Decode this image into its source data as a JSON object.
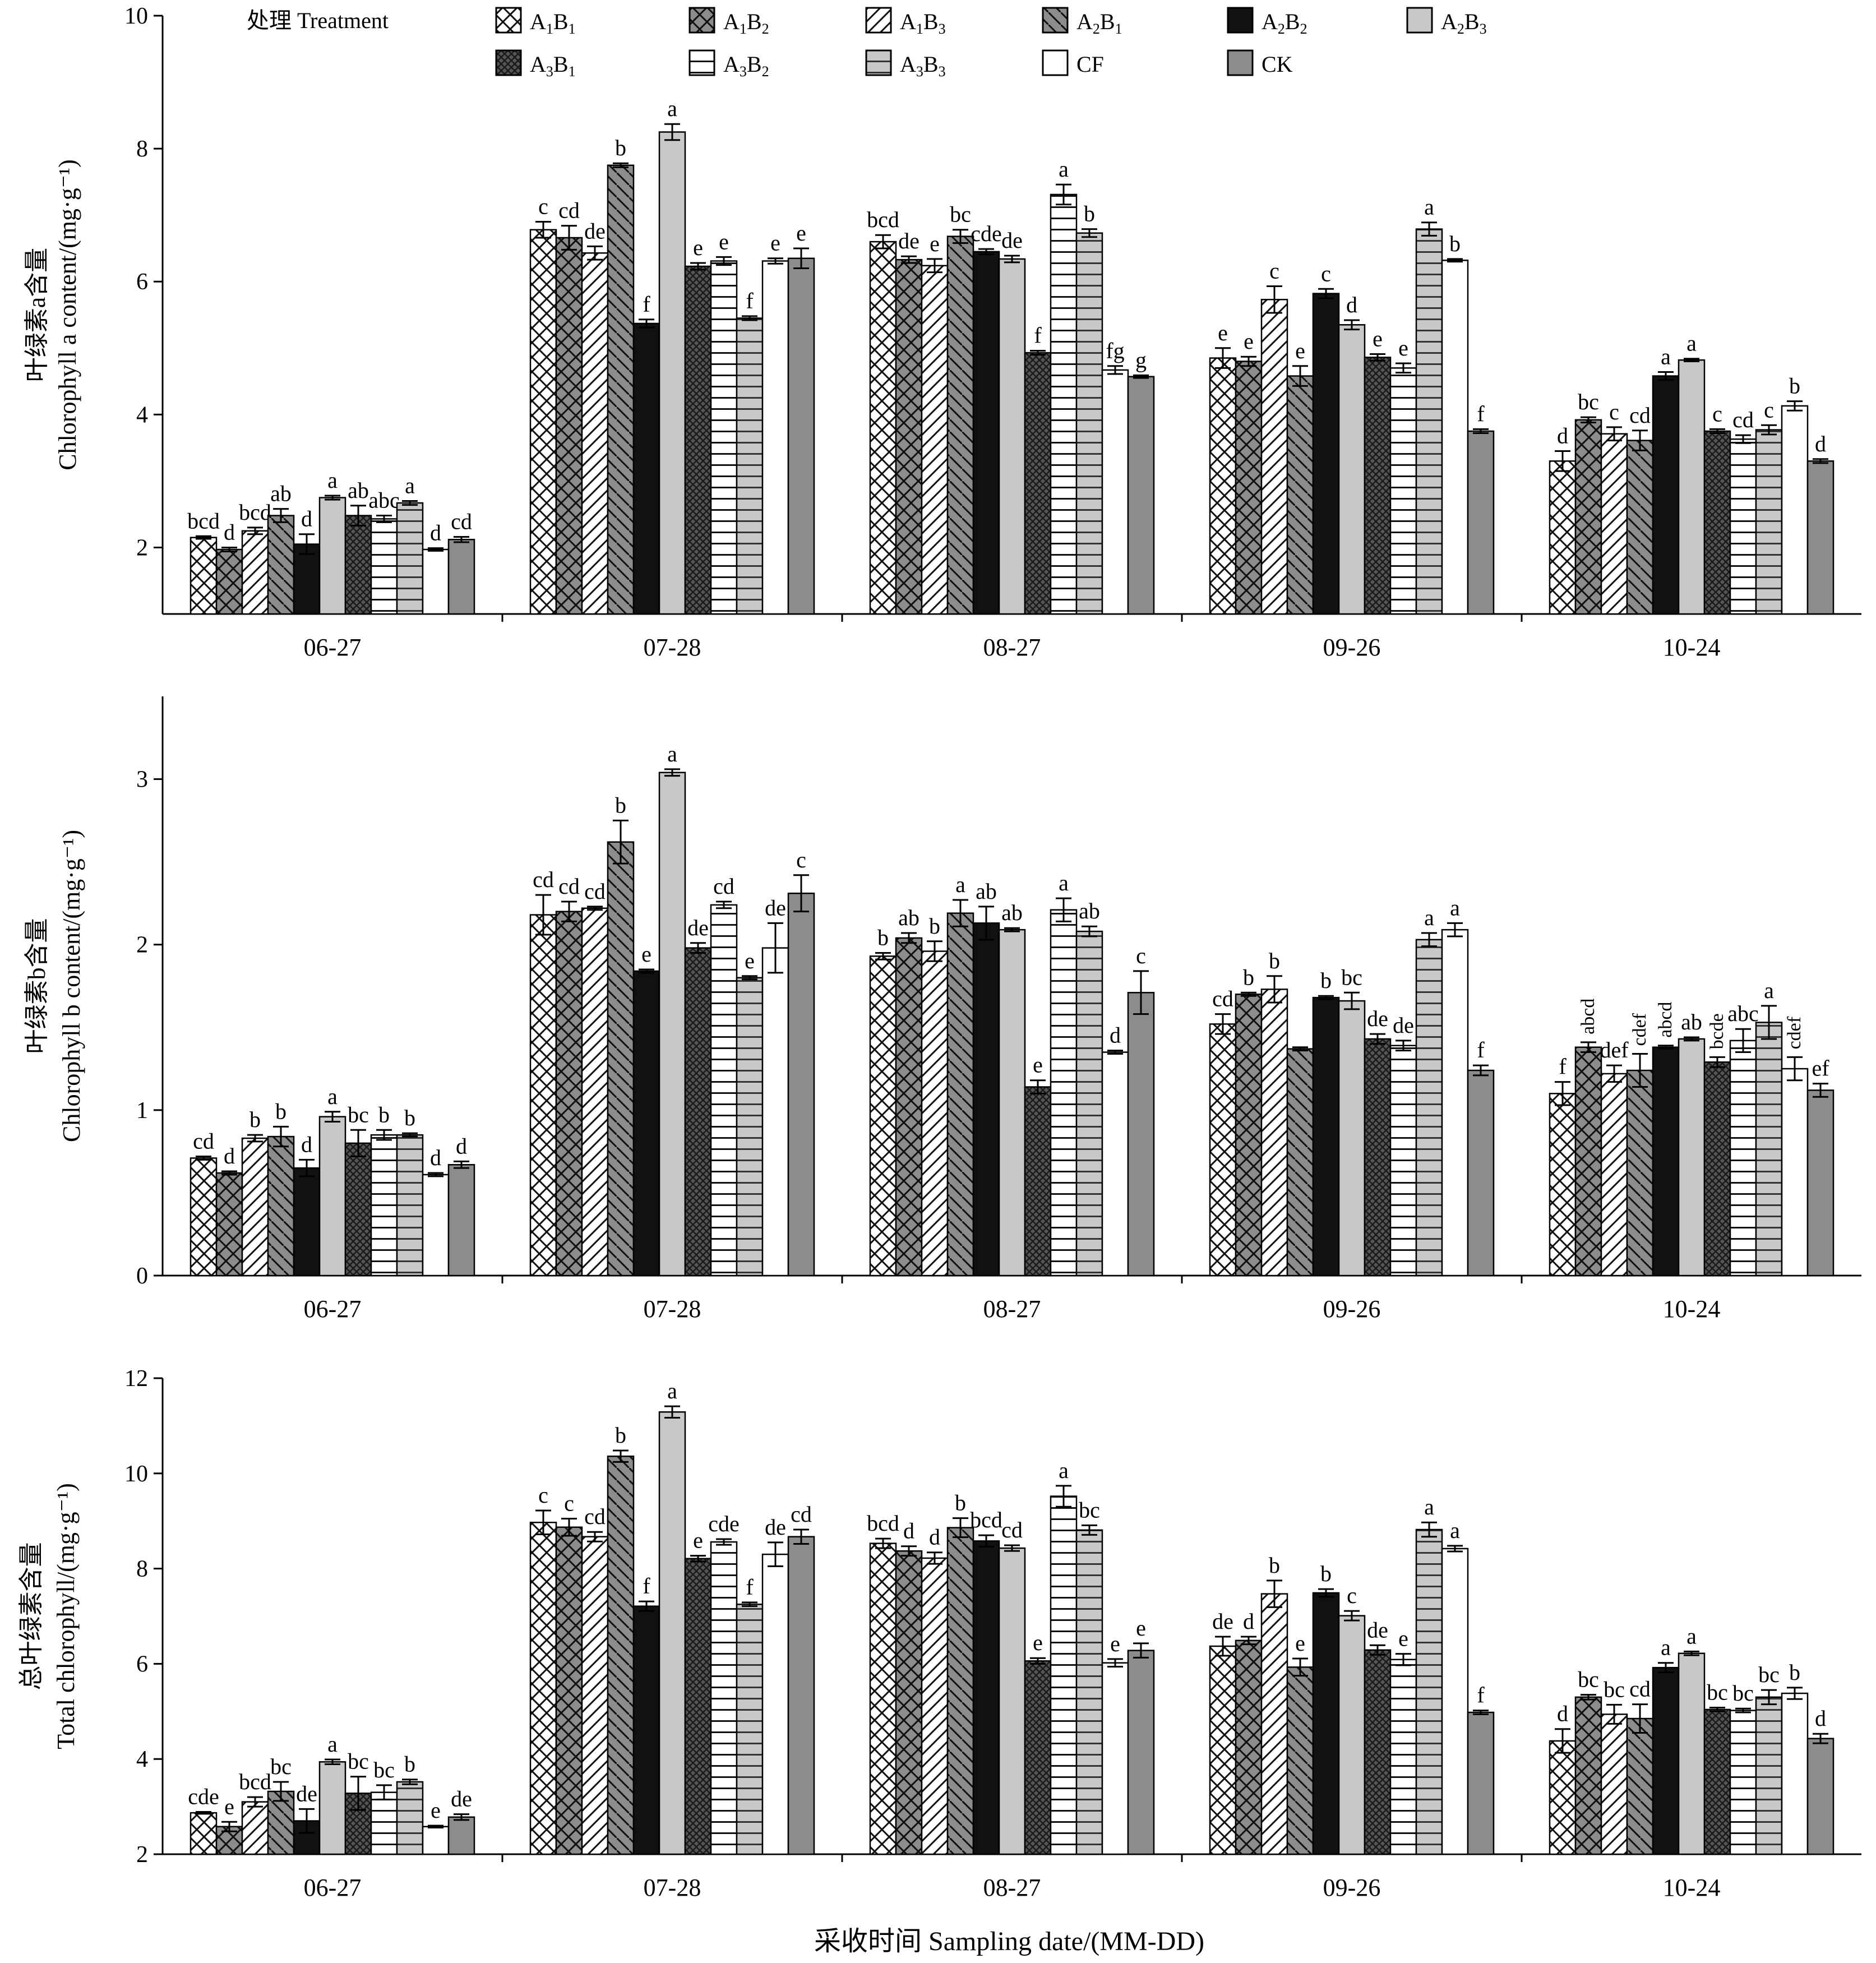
{
  "legend": {
    "title": "处理 Treatment",
    "entries": [
      {
        "key": "A1B1",
        "main": "A",
        "s1": "1",
        "mid": "B",
        "s2": "1",
        "pattern": "cross"
      },
      {
        "key": "A1B2",
        "main": "A",
        "s1": "1",
        "mid": "B",
        "s2": "2",
        "pattern": "gray-cross"
      },
      {
        "key": "A1B3",
        "main": "A",
        "s1": "1",
        "mid": "B",
        "s2": "3",
        "pattern": "diag-white"
      },
      {
        "key": "A2B1",
        "main": "A",
        "s1": "2",
        "mid": "B",
        "s2": "1",
        "pattern": "diag-gray"
      },
      {
        "key": "A2B2",
        "main": "A",
        "s1": "2",
        "mid": "B",
        "s2": "2",
        "pattern": "black"
      },
      {
        "key": "A2B3",
        "main": "A",
        "s1": "2",
        "mid": "B",
        "s2": "3",
        "pattern": "lightgray"
      },
      {
        "key": "A3B1",
        "main": "A",
        "s1": "3",
        "mid": "B",
        "s2": "1",
        "pattern": "dark-check"
      },
      {
        "key": "A3B2",
        "main": "A",
        "s1": "3",
        "mid": "B",
        "s2": "2",
        "pattern": "hlines-white"
      },
      {
        "key": "A3B3",
        "main": "A",
        "s1": "3",
        "mid": "B",
        "s2": "3",
        "pattern": "hlines-gray"
      },
      {
        "key": "CF",
        "main": "CF",
        "s1": "",
        "mid": "",
        "s2": "",
        "pattern": "white"
      },
      {
        "key": "CK",
        "main": "CK",
        "s1": "",
        "mid": "",
        "s2": "",
        "pattern": "gray"
      }
    ]
  },
  "colors": {
    "axis": "#000000",
    "gray": "#8c8c8c",
    "lightgray": "#c8c8c8",
    "darkgray": "#555555",
    "black": "#111111"
  },
  "xlabel": "采收时间 Sampling date/(MM-DD)",
  "chart_data": [
    {
      "type": "bar",
      "ylabel": [
        "叶绿素a含量",
        "Chlorophyll a content/(mg·g⁻¹)"
      ],
      "ylim": [
        1,
        10
      ],
      "yticks": [
        2,
        4,
        6,
        8,
        10
      ],
      "categories": [
        "06-27",
        "07-28",
        "08-27",
        "09-26",
        "10-24"
      ],
      "series_order": [
        "A1B1",
        "A1B2",
        "A1B3",
        "A2B1",
        "A2B2",
        "A2B3",
        "A3B1",
        "A3B2",
        "A3B3",
        "CF",
        "CK"
      ],
      "values": [
        [
          2.15,
          1.97,
          2.25,
          2.48,
          2.05,
          2.75,
          2.48,
          2.43,
          2.67,
          1.97,
          2.12
        ],
        [
          6.78,
          6.66,
          6.43,
          7.75,
          5.37,
          8.25,
          6.23,
          6.31,
          5.45,
          6.31,
          6.35
        ],
        [
          6.6,
          6.33,
          6.24,
          6.68,
          6.45,
          6.34,
          4.93,
          7.31,
          6.73,
          4.67,
          4.57
        ],
        [
          4.85,
          4.8,
          5.73,
          4.58,
          5.82,
          5.35,
          4.86,
          4.7,
          6.79,
          6.32,
          3.75
        ],
        [
          3.3,
          3.92,
          3.71,
          3.61,
          4.58,
          4.82,
          3.75,
          3.63,
          3.77,
          4.13,
          3.3
        ]
      ],
      "errors": [
        [
          0.02,
          0.03,
          0.05,
          0.1,
          0.15,
          0.03,
          0.15,
          0.05,
          0.03,
          0.02,
          0.04
        ],
        [
          0.12,
          0.18,
          0.1,
          0.03,
          0.06,
          0.12,
          0.05,
          0.06,
          0.03,
          0.04,
          0.15
        ],
        [
          0.1,
          0.05,
          0.1,
          0.1,
          0.04,
          0.05,
          0.03,
          0.15,
          0.06,
          0.06,
          0.02
        ],
        [
          0.15,
          0.07,
          0.2,
          0.15,
          0.07,
          0.07,
          0.05,
          0.07,
          0.1,
          0.02,
          0.03
        ],
        [
          0.15,
          0.04,
          0.1,
          0.15,
          0.06,
          0.02,
          0.03,
          0.06,
          0.07,
          0.07,
          0.03
        ]
      ],
      "letters": [
        [
          "bcd",
          "d",
          "bcd",
          "ab",
          "d",
          "a",
          "ab",
          "abc",
          "a",
          "d",
          "cd"
        ],
        [
          "c",
          "cd",
          "de",
          "b",
          "f",
          "a",
          "e",
          "e",
          "f",
          "e",
          "e"
        ],
        [
          "bcd",
          "de",
          "e",
          "bc",
          "cde",
          "de",
          "f",
          "a",
          "b",
          "fg",
          "g"
        ],
        [
          "e",
          "e",
          "c",
          "e",
          "c",
          "d",
          "e",
          "e",
          "a",
          "b",
          "f"
        ],
        [
          "d",
          "bc",
          "c",
          "cd",
          "a",
          "a",
          "c",
          "cd",
          "c",
          "b",
          "d"
        ]
      ]
    },
    {
      "type": "bar",
      "ylabel": [
        "叶绿素b含量",
        "Chlorophyll b content/(mg·g⁻¹)"
      ],
      "ylim": [
        0,
        3.5
      ],
      "yticks": [
        0,
        1,
        2,
        3
      ],
      "categories": [
        "06-27",
        "07-28",
        "08-27",
        "09-26",
        "10-24"
      ],
      "series_order": [
        "A1B1",
        "A1B2",
        "A1B3",
        "A2B1",
        "A2B2",
        "A2B3",
        "A3B1",
        "A3B2",
        "A3B3",
        "CF",
        "CK"
      ],
      "values": [
        [
          0.71,
          0.62,
          0.83,
          0.84,
          0.65,
          0.96,
          0.8,
          0.85,
          0.85,
          0.61,
          0.67
        ],
        [
          2.18,
          2.2,
          2.22,
          2.62,
          1.84,
          3.04,
          1.98,
          2.24,
          1.8,
          1.98,
          2.31
        ],
        [
          1.93,
          2.04,
          1.96,
          2.19,
          2.13,
          2.09,
          1.14,
          2.21,
          2.08,
          1.35,
          1.71
        ],
        [
          1.52,
          1.7,
          1.73,
          1.37,
          1.68,
          1.66,
          1.43,
          1.39,
          2.03,
          2.09,
          1.24
        ],
        [
          1.1,
          1.38,
          1.22,
          1.24,
          1.38,
          1.43,
          1.29,
          1.42,
          1.53,
          1.25,
          1.12
        ]
      ],
      "errors": [
        [
          0.01,
          0.01,
          0.02,
          0.06,
          0.05,
          0.03,
          0.08,
          0.03,
          0.01,
          0.01,
          0.02
        ],
        [
          0.12,
          0.06,
          0.01,
          0.13,
          0.01,
          0.02,
          0.03,
          0.02,
          0.01,
          0.15,
          0.11
        ],
        [
          0.02,
          0.03,
          0.06,
          0.08,
          0.1,
          0.01,
          0.04,
          0.07,
          0.03,
          0.01,
          0.13
        ],
        [
          0.06,
          0.01,
          0.08,
          0.01,
          0.01,
          0.05,
          0.03,
          0.03,
          0.04,
          0.04,
          0.03
        ],
        [
          0.07,
          0.03,
          0.05,
          0.1,
          0.01,
          0.01,
          0.03,
          0.07,
          0.1,
          0.07,
          0.04
        ]
      ],
      "letters": [
        [
          "cd",
          "d",
          "b",
          "b",
          "d",
          "a",
          "bc",
          "b",
          "b",
          "d",
          "d"
        ],
        [
          "cd",
          "cd",
          "cd",
          "b",
          "e",
          "a",
          "de",
          "cd",
          "e",
          "de",
          "c"
        ],
        [
          "b",
          "ab",
          "b",
          "a",
          "ab",
          "ab",
          "e",
          "a",
          "ab",
          "d",
          "c"
        ],
        [
          "cd",
          "b",
          "b",
          "",
          "b",
          "bc",
          "de",
          "de",
          "a",
          "a",
          "f"
        ],
        [
          "f",
          "abcd",
          "def",
          "cdef",
          "abcd",
          "ab",
          "bcde",
          "abc",
          "a",
          "cdef",
          "ef"
        ]
      ]
    },
    {
      "type": "bar",
      "ylabel": [
        "总叶绿素含量",
        "Total chlorophyll/(mg·g⁻¹)"
      ],
      "ylim": [
        2,
        12
      ],
      "yticks": [
        2,
        4,
        6,
        8,
        10,
        12
      ],
      "categories": [
        "06-27",
        "07-28",
        "08-27",
        "09-26",
        "10-24"
      ],
      "series_order": [
        "A1B1",
        "A1B2",
        "A1B3",
        "A2B1",
        "A2B2",
        "A2B3",
        "A3B1",
        "A3B2",
        "A3B3",
        "CF",
        "CK"
      ],
      "values": [
        [
          2.87,
          2.58,
          3.1,
          3.32,
          2.7,
          3.94,
          3.28,
          3.3,
          3.52,
          2.58,
          2.78
        ],
        [
          8.97,
          8.87,
          8.67,
          10.36,
          7.21,
          11.29,
          8.21,
          8.56,
          7.25,
          8.3,
          8.67
        ],
        [
          8.53,
          8.37,
          8.22,
          8.86,
          8.58,
          8.43,
          6.06,
          9.52,
          8.81,
          6.02,
          6.28
        ],
        [
          6.37,
          6.49,
          7.47,
          5.93,
          7.49,
          7.01,
          6.29,
          6.09,
          8.82,
          8.42,
          4.98
        ],
        [
          4.38,
          5.3,
          4.94,
          4.85,
          5.92,
          6.22,
          5.04,
          5.02,
          5.3,
          5.38,
          4.43
        ]
      ],
      "errors": [
        [
          0.02,
          0.1,
          0.1,
          0.2,
          0.25,
          0.05,
          0.35,
          0.15,
          0.05,
          0.02,
          0.06
        ],
        [
          0.25,
          0.18,
          0.1,
          0.12,
          0.1,
          0.12,
          0.06,
          0.06,
          0.04,
          0.25,
          0.15
        ],
        [
          0.1,
          0.1,
          0.12,
          0.2,
          0.12,
          0.06,
          0.06,
          0.22,
          0.1,
          0.08,
          0.15
        ],
        [
          0.2,
          0.08,
          0.28,
          0.18,
          0.08,
          0.1,
          0.1,
          0.12,
          0.15,
          0.06,
          0.04
        ],
        [
          0.25,
          0.05,
          0.2,
          0.3,
          0.1,
          0.04,
          0.04,
          0.04,
          0.15,
          0.12,
          0.1
        ]
      ],
      "letters": [
        [
          "cde",
          "e",
          "bcd",
          "bc",
          "de",
          "a",
          "bc",
          "bc",
          "b",
          "e",
          "de"
        ],
        [
          "c",
          "c",
          "cd",
          "b",
          "f",
          "a",
          "e",
          "cde",
          "f",
          "de",
          "cd"
        ],
        [
          "bcd",
          "d",
          "d",
          "b",
          "bcd",
          "cd",
          "e",
          "a",
          "bc",
          "e",
          "e"
        ],
        [
          "de",
          "d",
          "b",
          "e",
          "b",
          "c",
          "de",
          "e",
          "a",
          "a",
          "f"
        ],
        [
          "d",
          "bc",
          "bc",
          "cd",
          "a",
          "a",
          "bc",
          "bc",
          "bc",
          "b",
          "d"
        ]
      ]
    }
  ]
}
